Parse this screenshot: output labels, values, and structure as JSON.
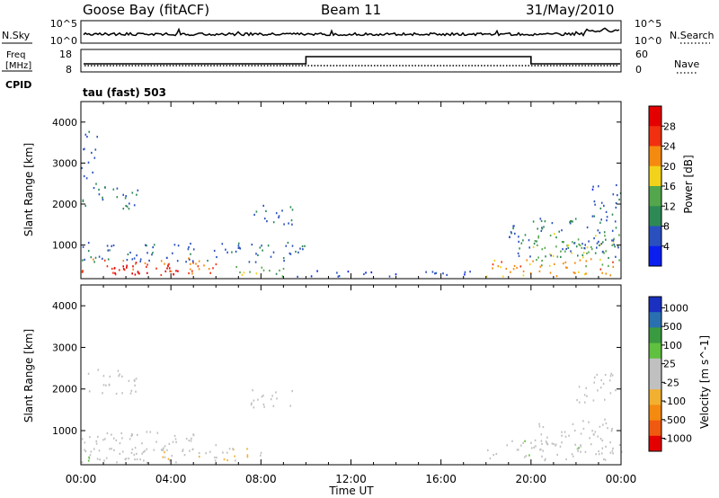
{
  "header": {
    "station": "Goose Bay (fitACF)",
    "beam": "Beam 11",
    "date": "31/May/2010"
  },
  "top_panels": {
    "noise_left": "N.Sky",
    "noise_ticks_left": [
      "10^5",
      "10^0"
    ],
    "noise_right": "N.Search",
    "noise_ticks_right": [
      "10^5",
      "10^0"
    ],
    "freq_left_lines": [
      "Freq",
      "[MHz]"
    ],
    "freq_ticks": [
      "18",
      "8"
    ],
    "nave_right": "Nave",
    "nave_ticks": [
      "60",
      "0"
    ],
    "cpid_label": "CPID",
    "cpid_text": "tau (fast) 503"
  },
  "x_axis": {
    "label": "Time UT",
    "ticks": [
      "00:00",
      "04:00",
      "08:00",
      "12:00",
      "16:00",
      "20:00",
      "00:00"
    ]
  },
  "power_panel": {
    "ylabel": "Slant Range [km]",
    "yticks": [
      "4000",
      "3000",
      "2000",
      "1000"
    ],
    "colorbar_label": "Power [dB]",
    "colorbar_ticks": [
      "28",
      "24",
      "20",
      "16",
      "12",
      "8",
      "4"
    ]
  },
  "velocity_panel": {
    "ylabel": "Slant Range [km]",
    "yticks": [
      "4000",
      "3000",
      "2000",
      "1000"
    ],
    "colorbar_label": "Velocity [m s^-1]",
    "colorbar_ticks": [
      "1000",
      "500",
      "100",
      "25",
      "-25",
      "-100",
      "-500",
      "-1000"
    ]
  },
  "chart_data": [
    {
      "type": "heatmap",
      "title": "Power",
      "xlabel": "Time UT",
      "ylabel": "Slant Range [km]",
      "x_range_hours": [
        0,
        24
      ],
      "y_range_km": [
        180,
        4500
      ],
      "z_label": "Power [dB]",
      "z_range": [
        0,
        32
      ],
      "colorscale": [
        "#0a1ef0",
        "#2a50c0",
        "#2e8a55",
        "#53a64b",
        "#f2d21a",
        "#f58a10",
        "#f03010",
        "#e40000"
      ],
      "regions": [
        {
          "t": [
            0,
            6
          ],
          "r": [
            250,
            700
          ],
          "z": 24
        },
        {
          "t": [
            1,
            5
          ],
          "r": [
            300,
            600
          ],
          "z": 30
        },
        {
          "t": [
            6,
            9
          ],
          "r": [
            250,
            500
          ],
          "z": 14
        },
        {
          "t": [
            0,
            10
          ],
          "r": [
            600,
            1100
          ],
          "z": 7
        },
        {
          "t": [
            0,
            2.5
          ],
          "r": [
            1900,
            2500
          ],
          "z": 9
        },
        {
          "t": [
            0,
            0.7
          ],
          "r": [
            2500,
            3800
          ],
          "z": 6
        },
        {
          "t": [
            7.5,
            9.5
          ],
          "r": [
            1500,
            2000
          ],
          "z": 7
        },
        {
          "t": [
            9.5,
            18
          ],
          "r": [
            250,
            400
          ],
          "z": 5
        },
        {
          "t": [
            18,
            24
          ],
          "r": [
            250,
            700
          ],
          "z": 22
        },
        {
          "t": [
            20,
            24
          ],
          "r": [
            500,
            1300
          ],
          "z": 15
        },
        {
          "t": [
            19,
            24
          ],
          "r": [
            700,
            1700
          ],
          "z": 8
        },
        {
          "t": [
            22.5,
            24
          ],
          "r": [
            1700,
            2500
          ],
          "z": 6
        }
      ]
    },
    {
      "type": "heatmap",
      "title": "Velocity",
      "xlabel": "Time UT",
      "ylabel": "Slant Range [km]",
      "x_range_hours": [
        0,
        24
      ],
      "y_range_km": [
        180,
        4500
      ],
      "z_label": "Velocity [m s^-1]",
      "z_range": [
        -1000,
        1000
      ],
      "colorscale": [
        "#e40000",
        "#f05a10",
        "#f58a10",
        "#f2b030",
        "#c0c0c0",
        "#c0c0c0",
        "#60c040",
        "#3a9a40",
        "#2a70b0",
        "#1a30c0"
      ],
      "regions": [
        {
          "t": [
            0,
            6
          ],
          "r": [
            250,
            1000
          ],
          "z": 20
        },
        {
          "t": [
            3,
            8
          ],
          "r": [
            300,
            600
          ],
          "z": -150
        },
        {
          "t": [
            0,
            3
          ],
          "r": [
            300,
            600
          ],
          "z": 90
        },
        {
          "t": [
            0,
            2.5
          ],
          "r": [
            1900,
            2500
          ],
          "z": 0
        },
        {
          "t": [
            7.5,
            9.5
          ],
          "r": [
            1500,
            2000
          ],
          "z": 0
        },
        {
          "t": [
            18,
            21
          ],
          "r": [
            300,
            800
          ],
          "z": 90
        },
        {
          "t": [
            20,
            24
          ],
          "r": [
            500,
            1300
          ],
          "z": 0
        },
        {
          "t": [
            21,
            24
          ],
          "r": [
            300,
            700
          ],
          "z": 50
        },
        {
          "t": [
            22,
            24
          ],
          "r": [
            1700,
            2400
          ],
          "z": 0
        }
      ]
    }
  ]
}
